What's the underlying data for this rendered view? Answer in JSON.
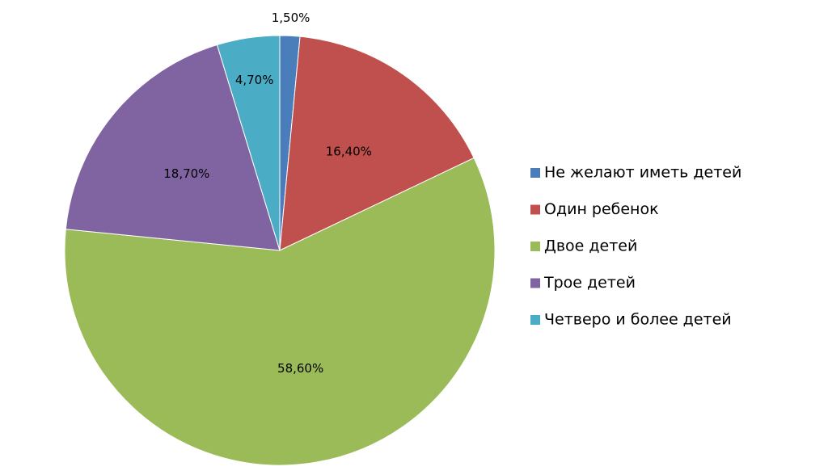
{
  "chart_data": {
    "type": "pie",
    "categories": [
      "Не желают иметь детей",
      "Один ребенок",
      "Двое детей",
      "Трое детей",
      "Четверо и более детей"
    ],
    "values": [
      1.5,
      16.4,
      58.6,
      18.7,
      4.7
    ],
    "value_labels": [
      "1,50%",
      "16,40%",
      "58,60%",
      "18,70%",
      "4,70%"
    ],
    "colors": [
      "#4a7ebb",
      "#c0504d",
      "#9bbb59",
      "#8064a2",
      "#4bacc6"
    ],
    "legend": "right"
  }
}
